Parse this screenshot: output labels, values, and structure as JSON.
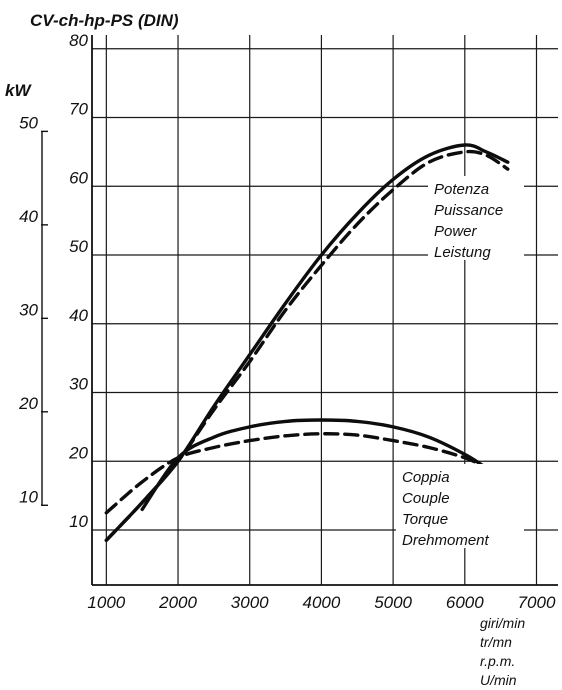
{
  "chart_data": {
    "type": "line",
    "title": "CV-ch-hp-PS (DIN)",
    "left_axis_label": "kW",
    "x_unit_labels": [
      "giri/min",
      "tr/mn",
      "r.p.m.",
      "U/min"
    ],
    "x_ticks": [
      1000,
      2000,
      3000,
      4000,
      5000,
      6000,
      7000
    ],
    "y_ticks": [
      10,
      20,
      30,
      40,
      50,
      60,
      70,
      80
    ],
    "kw_ticks": [
      10,
      20,
      30,
      40,
      50
    ],
    "xlim": [
      800,
      7300
    ],
    "ylim": [
      2,
      82
    ],
    "kw_per_cv": 0.7355,
    "grid": true,
    "power_label": [
      "Potenza",
      "Puissance",
      "Power",
      "Leistung"
    ],
    "torque_label": [
      "Coppia",
      "Couple",
      "Torque",
      "Drehmoment"
    ],
    "series": [
      {
        "style": "solid",
        "x": [
          1000,
          1500,
          2000,
          2500,
          3000,
          3500,
          4000,
          4500,
          5000,
          5500,
          6000,
          6300,
          6600
        ],
        "y": [
          8.5,
          14,
          20,
          28,
          35.5,
          43,
          50,
          56,
          61,
          64.5,
          66,
          65,
          63.5
        ]
      },
      {
        "style": "dashed",
        "x": [
          1000,
          1500,
          2000,
          2500,
          3000,
          3500,
          4000,
          4500,
          5000,
          5500,
          6000,
          6300,
          6600
        ],
        "y": [
          8.5,
          14,
          20,
          27.5,
          34.5,
          42,
          48.5,
          54.5,
          59.5,
          63.5,
          65,
          64.5,
          62.5
        ]
      },
      {
        "style": "solid",
        "x": [
          1500,
          2000,
          2500,
          3000,
          3500,
          4000,
          4500,
          5000,
          5500,
          6000,
          6300,
          6600
        ],
        "y": [
          13,
          20.5,
          23.5,
          25,
          25.8,
          26,
          25.8,
          25,
          23.5,
          21,
          19,
          16.5
        ]
      },
      {
        "style": "dashed",
        "x": [
          1000,
          1500,
          2000,
          2500,
          3000,
          3500,
          4000,
          4500,
          5000,
          5500,
          6000,
          6300,
          6600
        ],
        "y": [
          12.5,
          17,
          20.5,
          22,
          23,
          23.7,
          24,
          23.8,
          23,
          22,
          20.5,
          19,
          16.5
        ]
      }
    ]
  }
}
